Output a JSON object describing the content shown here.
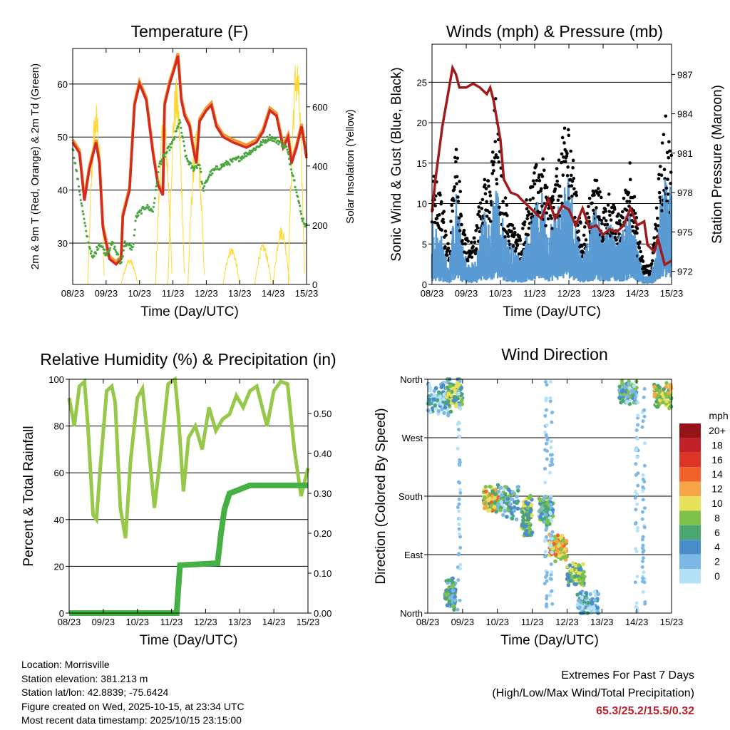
{
  "info": {
    "location": "Location: Morrisville",
    "elevation": "Station elevation: 381.213 m",
    "latlon": "Station lat/lon: 42.8839; -75.6424",
    "created": "Figure created on Wed, 2025-10-15, at 23:34 UTC",
    "timestamp": "Most recent data timestamp: 2025/10/15 23:15:00"
  },
  "extremes": {
    "title": "Extremes For Past 7 Days",
    "subtitle": "(High/Low/Max Wind/Total Precipitation)",
    "values": "65.3/25.2/15.5/0.32"
  },
  "colors": {
    "temp": "#d42a20",
    "temp9m": "#f39a32",
    "dewpoint": "#4aa640",
    "solar": "#ffd830",
    "wind": "#5a9bd4",
    "gust": "#000000",
    "pressure": "#a01c1c",
    "rh": "#96c94a",
    "precip": "#45b044"
  },
  "chart_data": [
    {
      "type": "line",
      "title": "Temperature (F)",
      "xlabel": "Time (Day/UTC)",
      "ylabel": "2m & 9m T (Red, Orange) & 2m Td (Green)",
      "y2label": "Solar Insolation (Yellow)",
      "xticks": [
        "08/23",
        "09/23",
        "10/23",
        "11/23",
        "12/23",
        "13/23",
        "14/23",
        "15/23"
      ],
      "yticks": [
        "30",
        "40",
        "50",
        "60"
      ],
      "ytick_values": [
        30,
        40,
        50,
        60
      ],
      "y2ticks": [
        "0",
        "200",
        "400",
        "600"
      ],
      "y2tick_values": [
        0,
        200,
        400,
        600
      ],
      "xlim": [
        0,
        7
      ],
      "ylim": [
        22.2,
        66.7
      ],
      "y2lim": [
        0,
        797
      ],
      "series": [
        {
          "name": "2m T",
          "color": "#d42a20",
          "points": [
            [
              0,
              49
            ],
            [
              0.2,
              47
            ],
            [
              0.35,
              38
            ],
            [
              0.5,
              44
            ],
            [
              0.7,
              49
            ],
            [
              0.8,
              45
            ],
            [
              0.9,
              33
            ],
            [
              1.1,
              27
            ],
            [
              1.3,
              26
            ],
            [
              1.45,
              27
            ],
            [
              1.5,
              35
            ],
            [
              1.7,
              40
            ],
            [
              1.85,
              56
            ],
            [
              2.0,
              60
            ],
            [
              2.2,
              57
            ],
            [
              2.4,
              47
            ],
            [
              2.55,
              41
            ],
            [
              2.7,
              39
            ],
            [
              2.75,
              56
            ],
            [
              2.9,
              60
            ],
            [
              3.05,
              63
            ],
            [
              3.15,
              65.3
            ],
            [
              3.25,
              57
            ],
            [
              3.35,
              54
            ],
            [
              3.5,
              52
            ],
            [
              3.6,
              48
            ],
            [
              3.7,
              45
            ],
            [
              3.8,
              53
            ],
            [
              4.0,
              55
            ],
            [
              4.15,
              56
            ],
            [
              4.3,
              52
            ],
            [
              4.5,
              50
            ],
            [
              4.8,
              49
            ],
            [
              5.2,
              48
            ],
            [
              5.5,
              49
            ],
            [
              5.7,
              51
            ],
            [
              5.9,
              55
            ],
            [
              6.1,
              54
            ],
            [
              6.3,
              48
            ],
            [
              6.45,
              50
            ],
            [
              6.55,
              45
            ],
            [
              6.7,
              48
            ],
            [
              6.85,
              52
            ],
            [
              7,
              46
            ]
          ]
        },
        {
          "name": "2m Td",
          "color": "#4aa640",
          "points": [
            [
              0,
              48
            ],
            [
              0.2,
              40
            ],
            [
              0.4,
              32
            ],
            [
              0.6,
              27
            ],
            [
              0.8,
              30
            ],
            [
              1.0,
              28
            ],
            [
              1.2,
              30
            ],
            [
              1.45,
              26
            ],
            [
              1.55,
              30
            ],
            [
              1.8,
              29
            ],
            [
              1.9,
              35
            ],
            [
              2.2,
              37
            ],
            [
              2.4,
              36
            ],
            [
              2.6,
              45
            ],
            [
              2.8,
              47
            ],
            [
              3.0,
              49
            ],
            [
              3.2,
              53
            ],
            [
              3.4,
              46
            ],
            [
              3.6,
              44
            ],
            [
              3.8,
              45
            ],
            [
              3.9,
              40
            ],
            [
              4.1,
              43
            ],
            [
              4.3,
              44
            ],
            [
              4.6,
              45
            ],
            [
              5.0,
              46
            ],
            [
              5.5,
              48
            ],
            [
              5.9,
              50
            ],
            [
              6.2,
              49
            ],
            [
              6.4,
              48
            ],
            [
              6.55,
              44
            ],
            [
              6.7,
              40
            ],
            [
              6.85,
              35
            ],
            [
              7,
              33
            ]
          ]
        }
      ],
      "solar_peaks": [
        [
          0.7,
          620
        ],
        [
          1.7,
          90
        ],
        [
          2.73,
          580
        ],
        [
          3.1,
          700
        ],
        [
          3.7,
          520
        ],
        [
          4.75,
          130
        ],
        [
          5.7,
          140
        ],
        [
          6.25,
          200
        ],
        [
          6.7,
          790
        ]
      ]
    },
    {
      "type": "line",
      "title": "Winds (mph) & Pressure (mb)",
      "xlabel": "Time (Day/UTC)",
      "ylabel": "Sonic Wind & Gust (Blue, Black)",
      "y2label": "Station Pressure (Maroon)",
      "xticks": [
        "08/23",
        "09/23",
        "10/23",
        "11/23",
        "12/23",
        "13/23",
        "14/23",
        "15/23"
      ],
      "yticks": [
        "0",
        "5",
        "10",
        "15",
        "20",
        "25"
      ],
      "ytick_values": [
        0,
        5,
        10,
        15,
        20,
        25
      ],
      "y2ticks": [
        "972",
        "975",
        "978",
        "981",
        "984",
        "987"
      ],
      "y2tick_values": [
        972,
        975,
        978,
        981,
        984,
        987
      ],
      "xlim": [
        0,
        7
      ],
      "ylim": [
        0,
        29.7
      ],
      "y2lim": [
        971.0,
        989.3
      ],
      "wind_envelope": [
        [
          0,
          7,
          12
        ],
        [
          0.3,
          5,
          9
        ],
        [
          0.5,
          2,
          4
        ],
        [
          0.7,
          10,
          15
        ],
        [
          0.9,
          4,
          7
        ],
        [
          1.1,
          2,
          4
        ],
        [
          1.3,
          3,
          6
        ],
        [
          1.5,
          8,
          13
        ],
        [
          1.7,
          6,
          10
        ],
        [
          1.85,
          12,
          20
        ],
        [
          2.0,
          8,
          13
        ],
        [
          2.2,
          5,
          8
        ],
        [
          2.4,
          4,
          6
        ],
        [
          2.6,
          3,
          5
        ],
        [
          2.8,
          6,
          10
        ],
        [
          3.0,
          8,
          12
        ],
        [
          3.2,
          10,
          14
        ],
        [
          3.4,
          6,
          9
        ],
        [
          3.6,
          8,
          11
        ],
        [
          3.8,
          10,
          15
        ],
        [
          4.0,
          12,
          18
        ],
        [
          4.2,
          7,
          10
        ],
        [
          4.4,
          3,
          5
        ],
        [
          4.6,
          6,
          9
        ],
        [
          4.8,
          8,
          12
        ],
        [
          5.0,
          5,
          8
        ],
        [
          5.2,
          7,
          10
        ],
        [
          5.4,
          5,
          7
        ],
        [
          5.6,
          6,
          9
        ],
        [
          5.8,
          9,
          14
        ],
        [
          6.0,
          4,
          6
        ],
        [
          6.2,
          1,
          2
        ],
        [
          6.4,
          1,
          2
        ],
        [
          6.6,
          6,
          10
        ],
        [
          6.8,
          12,
          18
        ],
        [
          7,
          10,
          14
        ]
      ],
      "pressure": [
        [
          0,
          976.5
        ],
        [
          0.1,
          979
        ],
        [
          0.3,
          983
        ],
        [
          0.5,
          986
        ],
        [
          0.6,
          987.5
        ],
        [
          0.7,
          987
        ],
        [
          0.8,
          986
        ],
        [
          1.0,
          986
        ],
        [
          1.2,
          986.3
        ],
        [
          1.4,
          986
        ],
        [
          1.6,
          985.5
        ],
        [
          1.7,
          986
        ],
        [
          1.8,
          985
        ],
        [
          2.0,
          982
        ],
        [
          2.1,
          979
        ],
        [
          2.3,
          978
        ],
        [
          2.5,
          977.8
        ],
        [
          2.6,
          977.5
        ],
        [
          2.8,
          977
        ],
        [
          3.0,
          976.5
        ],
        [
          3.2,
          976
        ],
        [
          3.4,
          977.5
        ],
        [
          3.6,
          976
        ],
        [
          3.8,
          977
        ],
        [
          4.0,
          976.7
        ],
        [
          4.2,
          975.5
        ],
        [
          4.4,
          976.8
        ],
        [
          4.6,
          975.3
        ],
        [
          4.8,
          975.5
        ],
        [
          5.0,
          974.8
        ],
        [
          5.2,
          975.2
        ],
        [
          5.4,
          975.0
        ],
        [
          5.6,
          975.5
        ],
        [
          5.8,
          976.8
        ],
        [
          6.0,
          975.5
        ],
        [
          6.2,
          975.8
        ],
        [
          6.3,
          974
        ],
        [
          6.5,
          973.5
        ],
        [
          6.6,
          974.5
        ],
        [
          6.8,
          972.5
        ],
        [
          7,
          972.8
        ]
      ]
    },
    {
      "type": "line",
      "title": "Relative Humidity (%) & Precipitation (in)",
      "xlabel": "Time (Day/UTC)",
      "ylabel": "Percent & Total Rainfall",
      "xticks": [
        "08/23",
        "09/23",
        "10/23",
        "11/23",
        "12/23",
        "13/23",
        "14/23",
        "15/23"
      ],
      "yticks": [
        "0",
        "20",
        "40",
        "60",
        "80",
        "100"
      ],
      "ytick_values": [
        0,
        20,
        40,
        60,
        80,
        100
      ],
      "y2ticks": [
        "0.00",
        "0.10",
        "0.20",
        "0.30",
        "0.40",
        "0.50"
      ],
      "y2tick_values": [
        0,
        0.1,
        0.2,
        0.3,
        0.4,
        0.5
      ],
      "xlim": [
        0,
        7
      ],
      "ylim": [
        0,
        100
      ],
      "y2lim": [
        0,
        0.586
      ],
      "rh": [
        [
          0,
          92
        ],
        [
          0.15,
          80
        ],
        [
          0.3,
          97
        ],
        [
          0.45,
          99
        ],
        [
          0.55,
          80
        ],
        [
          0.7,
          42
        ],
        [
          0.8,
          40
        ],
        [
          0.9,
          60
        ],
        [
          1.1,
          95
        ],
        [
          1.25,
          97
        ],
        [
          1.35,
          90
        ],
        [
          1.5,
          45
        ],
        [
          1.65,
          32
        ],
        [
          1.8,
          65
        ],
        [
          2.0,
          92
        ],
        [
          2.15,
          96
        ],
        [
          2.3,
          75
        ],
        [
          2.5,
          45
        ],
        [
          2.7,
          70
        ],
        [
          2.9,
          98
        ],
        [
          3.1,
          100
        ],
        [
          3.2,
          85
        ],
        [
          3.35,
          52
        ],
        [
          3.5,
          75
        ],
        [
          3.7,
          80
        ],
        [
          3.9,
          70
        ],
        [
          4.1,
          88
        ],
        [
          4.3,
          78
        ],
        [
          4.5,
          83
        ],
        [
          4.7,
          85
        ],
        [
          4.9,
          93
        ],
        [
          5.1,
          88
        ],
        [
          5.3,
          95
        ],
        [
          5.5,
          97
        ],
        [
          5.8,
          80
        ],
        [
          6.0,
          95
        ],
        [
          6.2,
          99
        ],
        [
          6.4,
          98
        ],
        [
          6.6,
          70
        ],
        [
          6.8,
          50
        ],
        [
          7,
          62
        ]
      ],
      "precip": [
        [
          0,
          0
        ],
        [
          3.15,
          0
        ],
        [
          3.2,
          0.06
        ],
        [
          3.25,
          0.12
        ],
        [
          4.35,
          0.125
        ],
        [
          4.45,
          0.2
        ],
        [
          4.55,
          0.26
        ],
        [
          4.7,
          0.3
        ],
        [
          5.0,
          0.31
        ],
        [
          5.3,
          0.32
        ],
        [
          7,
          0.32
        ]
      ]
    },
    {
      "type": "scatter",
      "title": "Wind Direction",
      "xlabel": "Time (Day/UTC)",
      "ylabel": "Direction (Colored By Speed)",
      "xticks": [
        "08/23",
        "09/23",
        "10/23",
        "11/23",
        "12/23",
        "13/23",
        "14/23",
        "15/23"
      ],
      "yticks": [
        "North",
        "East",
        "South",
        "West",
        "North"
      ],
      "ytick_values": [
        0,
        90,
        180,
        270,
        360
      ],
      "xlim": [
        0,
        7
      ],
      "ylim": [
        0,
        360
      ],
      "clusters": [
        [
          0,
          0.6,
          330,
          20,
          3
        ],
        [
          0.5,
          1.0,
          335,
          22,
          8
        ],
        [
          0.5,
          0.8,
          30,
          20,
          6
        ],
        [
          1.6,
          2.0,
          175,
          15,
          11
        ],
        [
          2.0,
          2.6,
          170,
          20,
          5
        ],
        [
          2.7,
          3.0,
          150,
          25,
          8
        ],
        [
          3.2,
          3.6,
          160,
          20,
          6
        ],
        [
          3.5,
          4.0,
          100,
          15,
          12
        ],
        [
          4.0,
          4.5,
          60,
          15,
          8
        ],
        [
          4.3,
          4.9,
          15,
          15,
          4
        ],
        [
          5.5,
          6.0,
          340,
          15,
          5
        ],
        [
          6.5,
          7,
          335,
          15,
          10
        ]
      ],
      "sparse_columns": [
        [
          0.9,
          1
        ],
        [
          3.4,
          1
        ],
        [
          3.55,
          1
        ],
        [
          6.0,
          1
        ],
        [
          6.2,
          1
        ]
      ],
      "legend_title": "mph",
      "legend_labels": [
        "20+",
        "18",
        "16",
        "14",
        "12",
        "10",
        "8",
        "6",
        "4",
        "2",
        "0"
      ],
      "legend_colors": [
        "#961419",
        "#c21f27",
        "#de3327",
        "#f0622a",
        "#f6a445",
        "#e7e05a",
        "#7ec24c",
        "#4aa771",
        "#4a8ec8",
        "#7db9e6",
        "#b6e1f7"
      ]
    }
  ]
}
